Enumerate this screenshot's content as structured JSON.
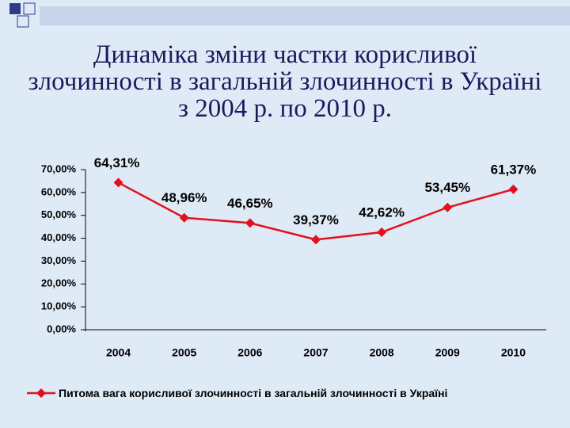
{
  "chart_data": {
    "type": "line",
    "title": "Динаміка зміни частки корисливої злочинності в загальній злочинності в Україні з 2004 р. по 2010 р.",
    "categories": [
      "2004",
      "2005",
      "2006",
      "2007",
      "2008",
      "2009",
      "2010"
    ],
    "series": [
      {
        "name": "Питома вага корисливої злочинності в загальній злочинності в Україні",
        "color": "#e3101e",
        "values": [
          64.31,
          48.96,
          46.65,
          39.37,
          42.62,
          53.45,
          61.37
        ],
        "value_labels": [
          "64,31%",
          "48,96%",
          "46,65%",
          "39,37%",
          "42,62%",
          "53,45%",
          "61,37%"
        ]
      }
    ],
    "ylim": [
      0,
      70
    ],
    "yticks": [
      {
        "value": 0,
        "label": "0,00%"
      },
      {
        "value": 10,
        "label": "10,00%"
      },
      {
        "value": 20,
        "label": "20,00%"
      },
      {
        "value": 30,
        "label": "30,00%"
      },
      {
        "value": 40,
        "label": "40,00%"
      },
      {
        "value": 50,
        "label": "50,00%"
      },
      {
        "value": 60,
        "label": "60,00%"
      },
      {
        "value": 70,
        "label": "70,00%"
      }
    ],
    "legend": "bottom"
  }
}
